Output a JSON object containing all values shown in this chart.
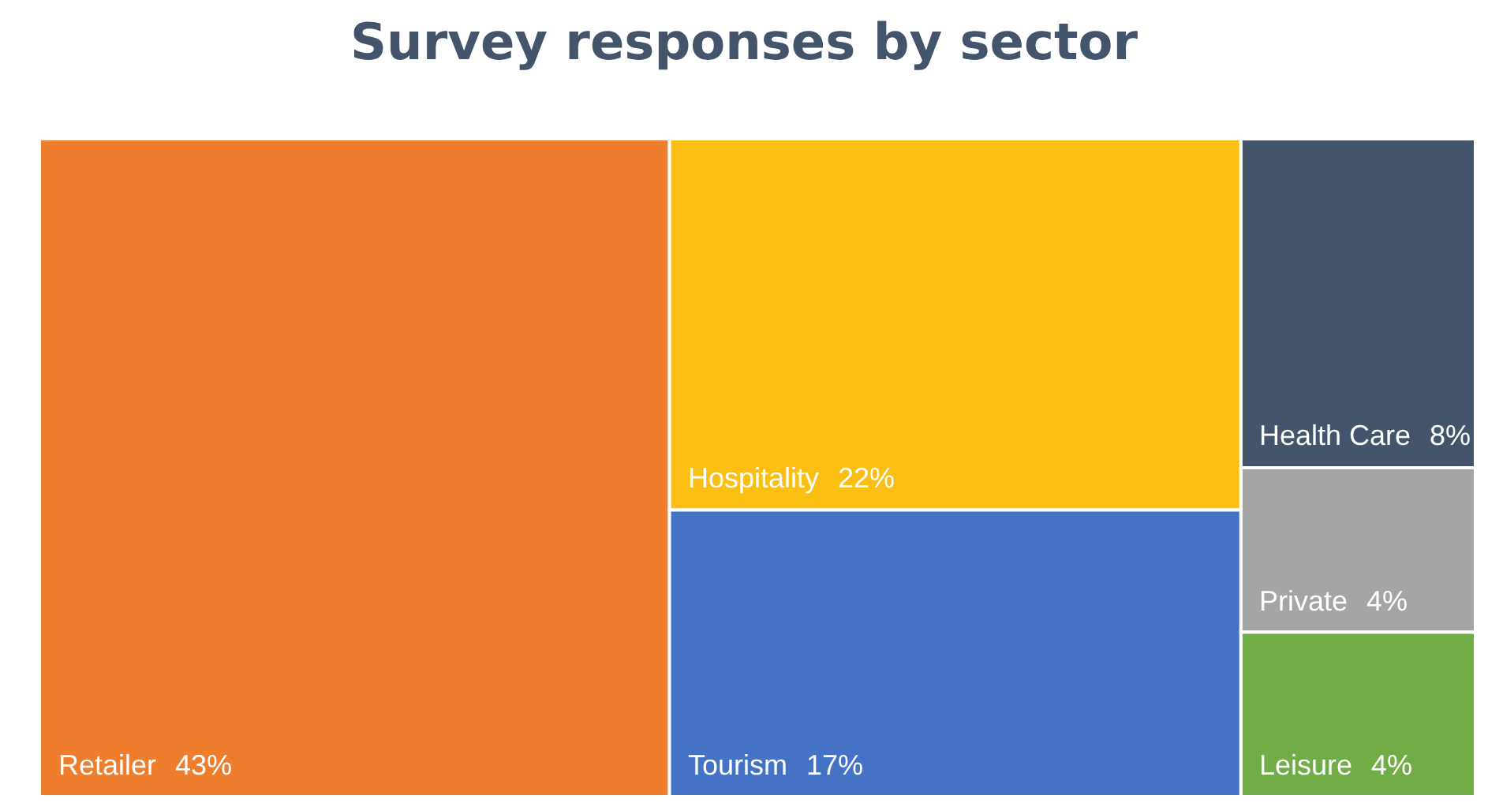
{
  "chart_data": {
    "type": "other",
    "title": "Survey responses by sector",
    "categories": [
      "Retailer",
      "Hospitality",
      "Tourism",
      "Health Care",
      "Private",
      "Leisure"
    ],
    "values": [
      43,
      22,
      17,
      8,
      4,
      4
    ],
    "value_labels": [
      "43%",
      "22%",
      "17%",
      "8%",
      "4%",
      "4%"
    ],
    "colors": [
      "#ee7d2e",
      "#fbbf14",
      "#4472c4",
      "#44546a",
      "#a5a5a5",
      "#70ad47"
    ]
  }
}
